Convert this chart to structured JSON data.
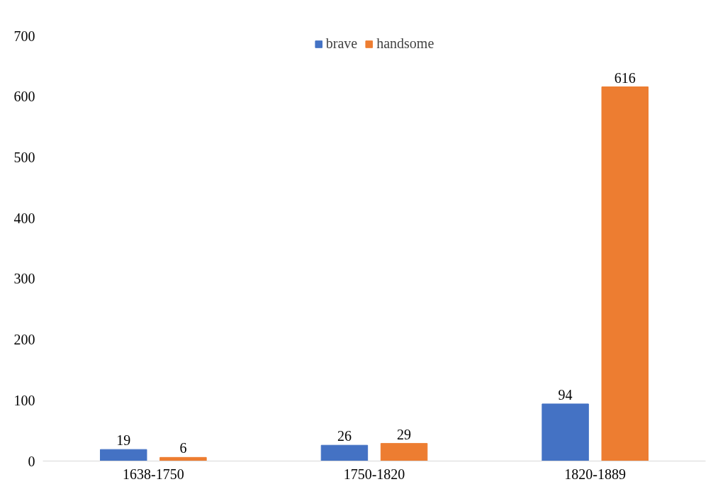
{
  "chart_data": {
    "type": "bar",
    "categories": [
      "1638-1750",
      "1750-1820",
      "1820-1889"
    ],
    "series": [
      {
        "name": "brave",
        "color": "#4472c4",
        "values": [
          19,
          26,
          94
        ]
      },
      {
        "name": "handsome",
        "color": "#ed7d31",
        "values": [
          6,
          29,
          616
        ]
      }
    ],
    "ylim": [
      0,
      700
    ],
    "yticks": [
      0,
      100,
      200,
      300,
      400,
      500,
      600,
      700
    ],
    "grid": false,
    "legend": "top",
    "data_labels": true
  }
}
